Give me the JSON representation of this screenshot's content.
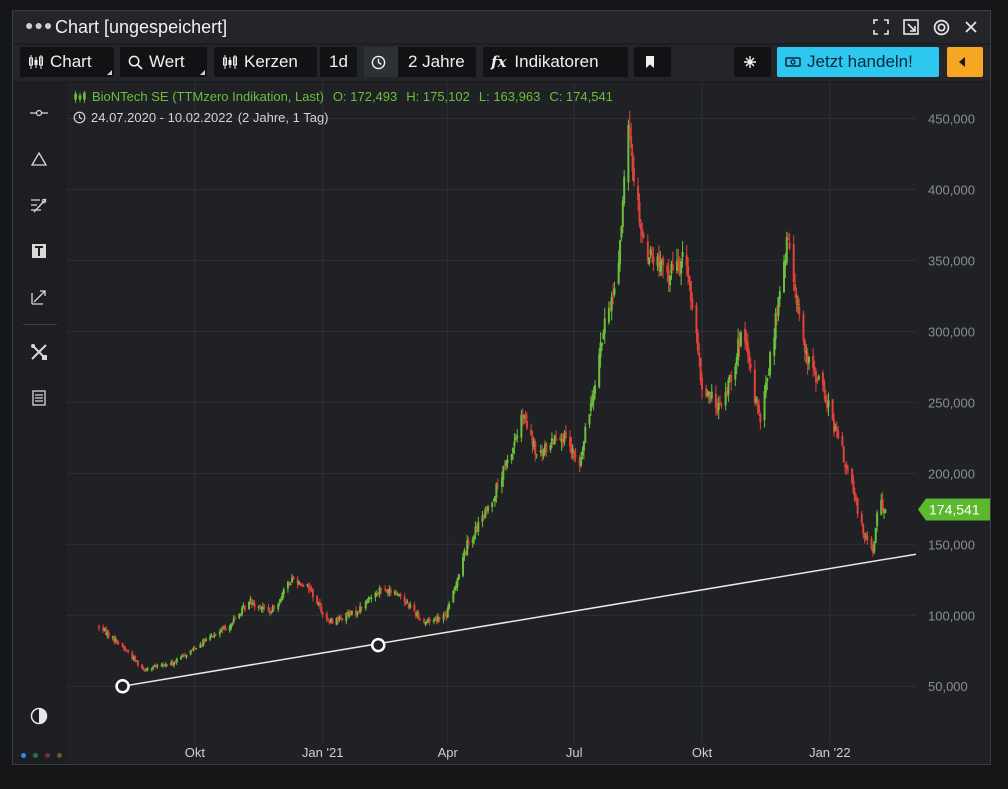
{
  "window": {
    "title": "Chart [ungespeichert]"
  },
  "toolbar": {
    "chart_label": "Chart",
    "search_label": "Wert",
    "candles_label": "Kerzen",
    "interval_label": "1d",
    "range_label": "2 Jahre",
    "indicators_label": "Indikatoren",
    "trade_label": "Jetzt handeln!"
  },
  "legend": {
    "instrument": "BioNTech SE (TTMzero Indikation, Last)",
    "open": "O: 172,493",
    "high": "H: 175,102",
    "low": "L: 163,963",
    "close": "C: 174,541",
    "date_range": "24.07.2020 - 10.02.2022",
    "period": "(2 Jahre, 1 Tag)"
  },
  "chart_data": {
    "type": "candlestick",
    "title": "BioNTech SE (TTMzero Indikation, Last)",
    "x_tick_labels": [
      "Okt",
      "Jan '21",
      "Apr",
      "Jul",
      "Okt",
      "Jan '22"
    ],
    "y_ticks": [
      50000,
      100000,
      150000,
      200000,
      250000,
      300000,
      350000,
      400000,
      450000
    ],
    "y_tick_labels": [
      "50,000",
      "100,000",
      "150,000",
      "200,000",
      "250,000",
      "300,000",
      "350,000",
      "400,000",
      "450,000"
    ],
    "ylim": [
      10000,
      475000
    ],
    "xlim": [
      "2020-07-01",
      "2022-03-04"
    ],
    "last_price": 174541,
    "last_price_label": "174,541",
    "last_ohlc": {
      "open": 172493,
      "high": 175102,
      "low": 163963,
      "close": 174541
    },
    "colors": {
      "up": "#6cbf3c",
      "down": "#e0413a",
      "trendline": "#e8e8e8",
      "price_tag": "#5cb82e"
    },
    "close_path": [
      [
        "2020-07-24",
        92000
      ],
      [
        "2020-08-10",
        78000
      ],
      [
        "2020-08-25",
        62000
      ],
      [
        "2020-09-15",
        66000
      ],
      [
        "2020-10-05",
        80000
      ],
      [
        "2020-10-25",
        92000
      ],
      [
        "2020-11-10",
        110000
      ],
      [
        "2020-11-25",
        102000
      ],
      [
        "2020-12-10",
        126000
      ],
      [
        "2020-12-22",
        120000
      ],
      [
        "2021-01-05",
        95000
      ],
      [
        "2021-01-25",
        102000
      ],
      [
        "2021-02-10",
        118000
      ],
      [
        "2021-02-25",
        115000
      ],
      [
        "2021-03-15",
        95000
      ],
      [
        "2021-03-31",
        100000
      ],
      [
        "2021-04-15",
        150000
      ],
      [
        "2021-04-30",
        175000
      ],
      [
        "2021-05-15",
        210000
      ],
      [
        "2021-05-25",
        240000
      ],
      [
        "2021-06-05",
        210000
      ],
      [
        "2021-06-20",
        230000
      ],
      [
        "2021-07-05",
        205000
      ],
      [
        "2021-07-20",
        290000
      ],
      [
        "2021-08-01",
        340000
      ],
      [
        "2021-08-09",
        440000
      ],
      [
        "2021-08-20",
        360000
      ],
      [
        "2021-09-05",
        340000
      ],
      [
        "2021-09-20",
        350000
      ],
      [
        "2021-10-01",
        260000
      ],
      [
        "2021-10-15",
        245000
      ],
      [
        "2021-10-30",
        300000
      ],
      [
        "2021-11-12",
        235000
      ],
      [
        "2021-11-25",
        320000
      ],
      [
        "2021-12-02",
        365000
      ],
      [
        "2021-12-15",
        280000
      ],
      [
        "2021-12-25",
        265000
      ],
      [
        "2022-01-10",
        215000
      ],
      [
        "2022-01-25",
        160000
      ],
      [
        "2022-02-01",
        145000
      ],
      [
        "2022-02-05",
        180000
      ],
      [
        "2022-02-10",
        174541
      ]
    ],
    "trendline": {
      "start": [
        "2020-08-10",
        50000
      ],
      "end": [
        "2022-03-04",
        143000
      ],
      "handles": [
        [
          "2020-08-10",
          50000
        ],
        [
          "2021-02-10",
          79000
        ]
      ]
    }
  }
}
